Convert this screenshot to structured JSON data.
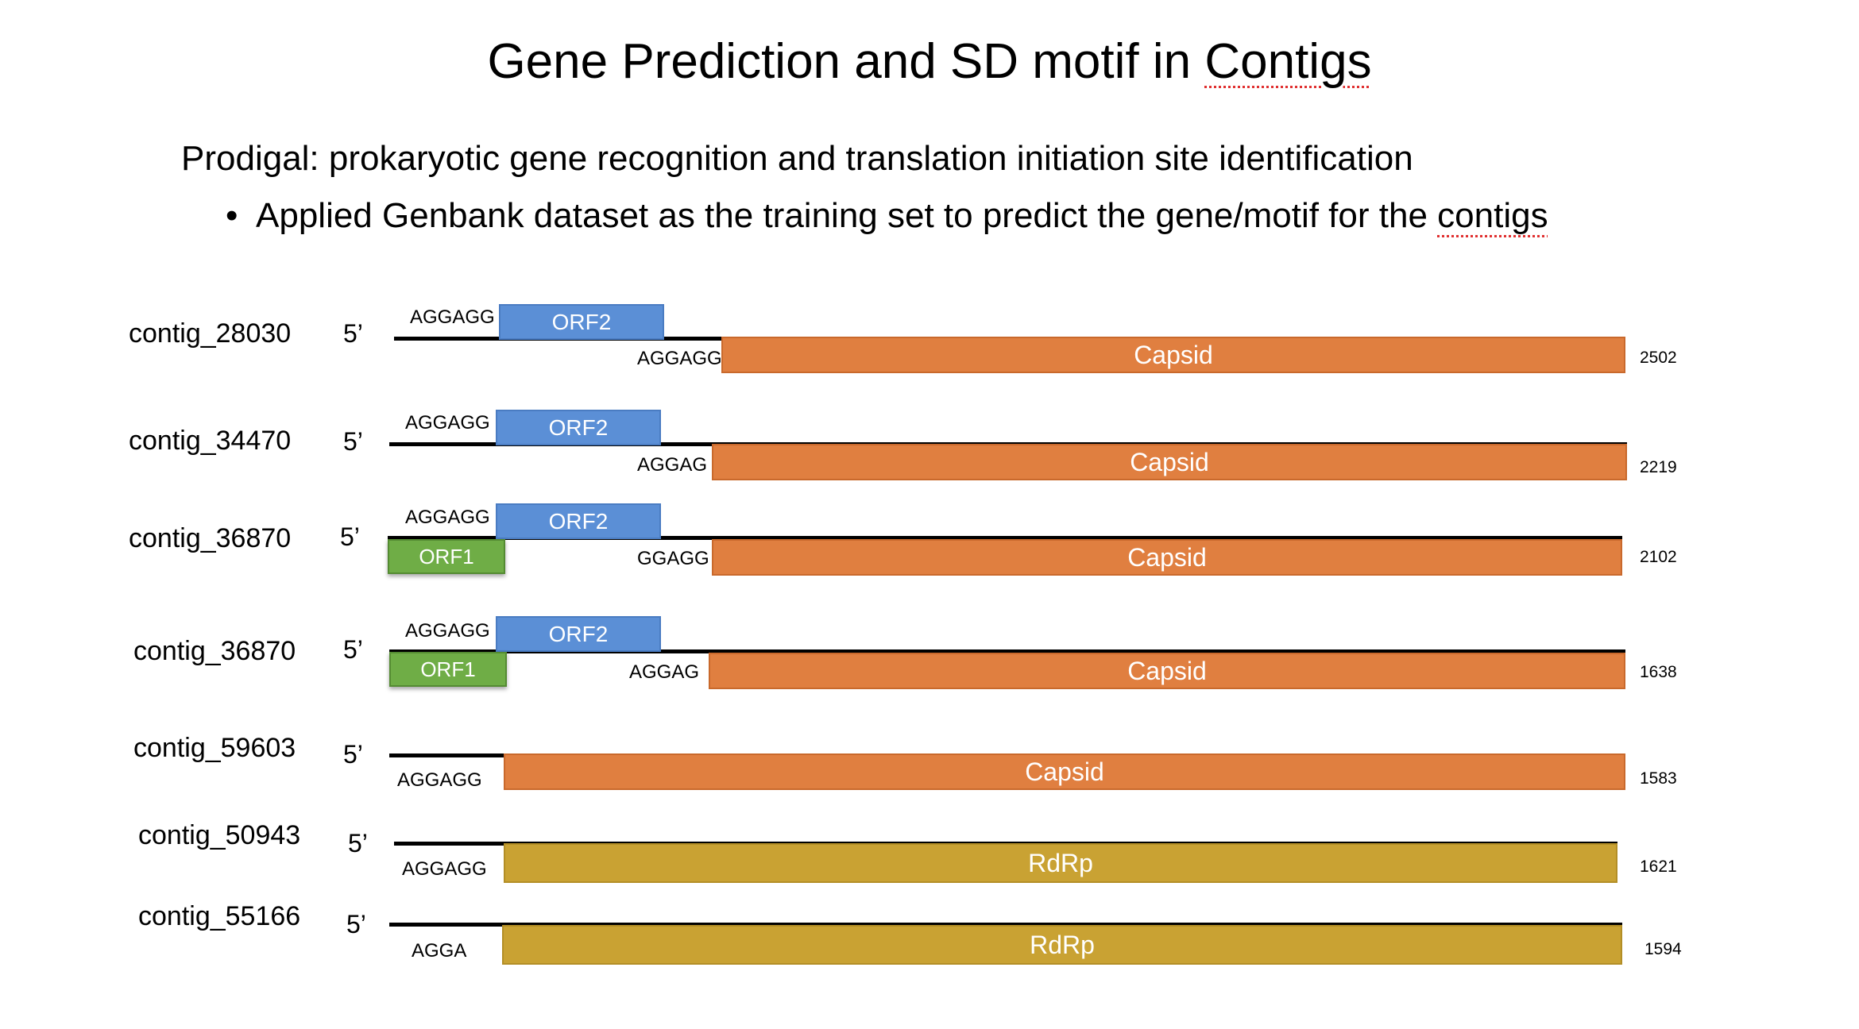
{
  "title": {
    "before": "Gene Prediction and SD motif  in ",
    "flagged": "Contigs"
  },
  "subtitle": "Prodigal: prokaryotic gene recognition and translation initiation site identification",
  "bullet": {
    "before": "Applied Genbank dataset as the training set to predict the gene/motif for the ",
    "flagged": "contigs"
  },
  "prime_label": "5’",
  "colors": {
    "orf2": "#5b8fd6",
    "orf1": "#6fad46",
    "capsid": "#e07f40",
    "rdrp": "#c9a233"
  },
  "contigs": [
    {
      "name": "contig_28030",
      "length": "2502",
      "orf2_motif": "AGGAGG",
      "orf2_label": "ORF2",
      "main_motif": "AGGAGG",
      "main_label": "Capsid"
    },
    {
      "name": "contig_34470",
      "length": "2219",
      "orf2_motif": "AGGAGG",
      "orf2_label": "ORF2",
      "main_motif": "AGGAG",
      "main_label": "Capsid"
    },
    {
      "name": "contig_36870",
      "length": "2102",
      "orf2_motif": "AGGAGG",
      "orf2_label": "ORF2",
      "orf1_label": "ORF1",
      "main_motif": "GGAGG",
      "main_label": "Capsid"
    },
    {
      "name": "contig_36870",
      "length": "1638",
      "orf2_motif": "AGGAGG",
      "orf2_label": "ORF2",
      "orf1_label": "ORF1",
      "main_motif": "AGGAG",
      "main_label": "Capsid"
    },
    {
      "name": "contig_59603",
      "length": "1583",
      "main_motif": "AGGAGG",
      "main_label": "Capsid"
    },
    {
      "name": "contig_50943",
      "length": "1621",
      "main_motif": "AGGAGG",
      "main_label": "RdRp"
    },
    {
      "name": "contig_55166",
      "length": "1594",
      "main_motif": "AGGA",
      "main_label": "RdRp"
    }
  ]
}
